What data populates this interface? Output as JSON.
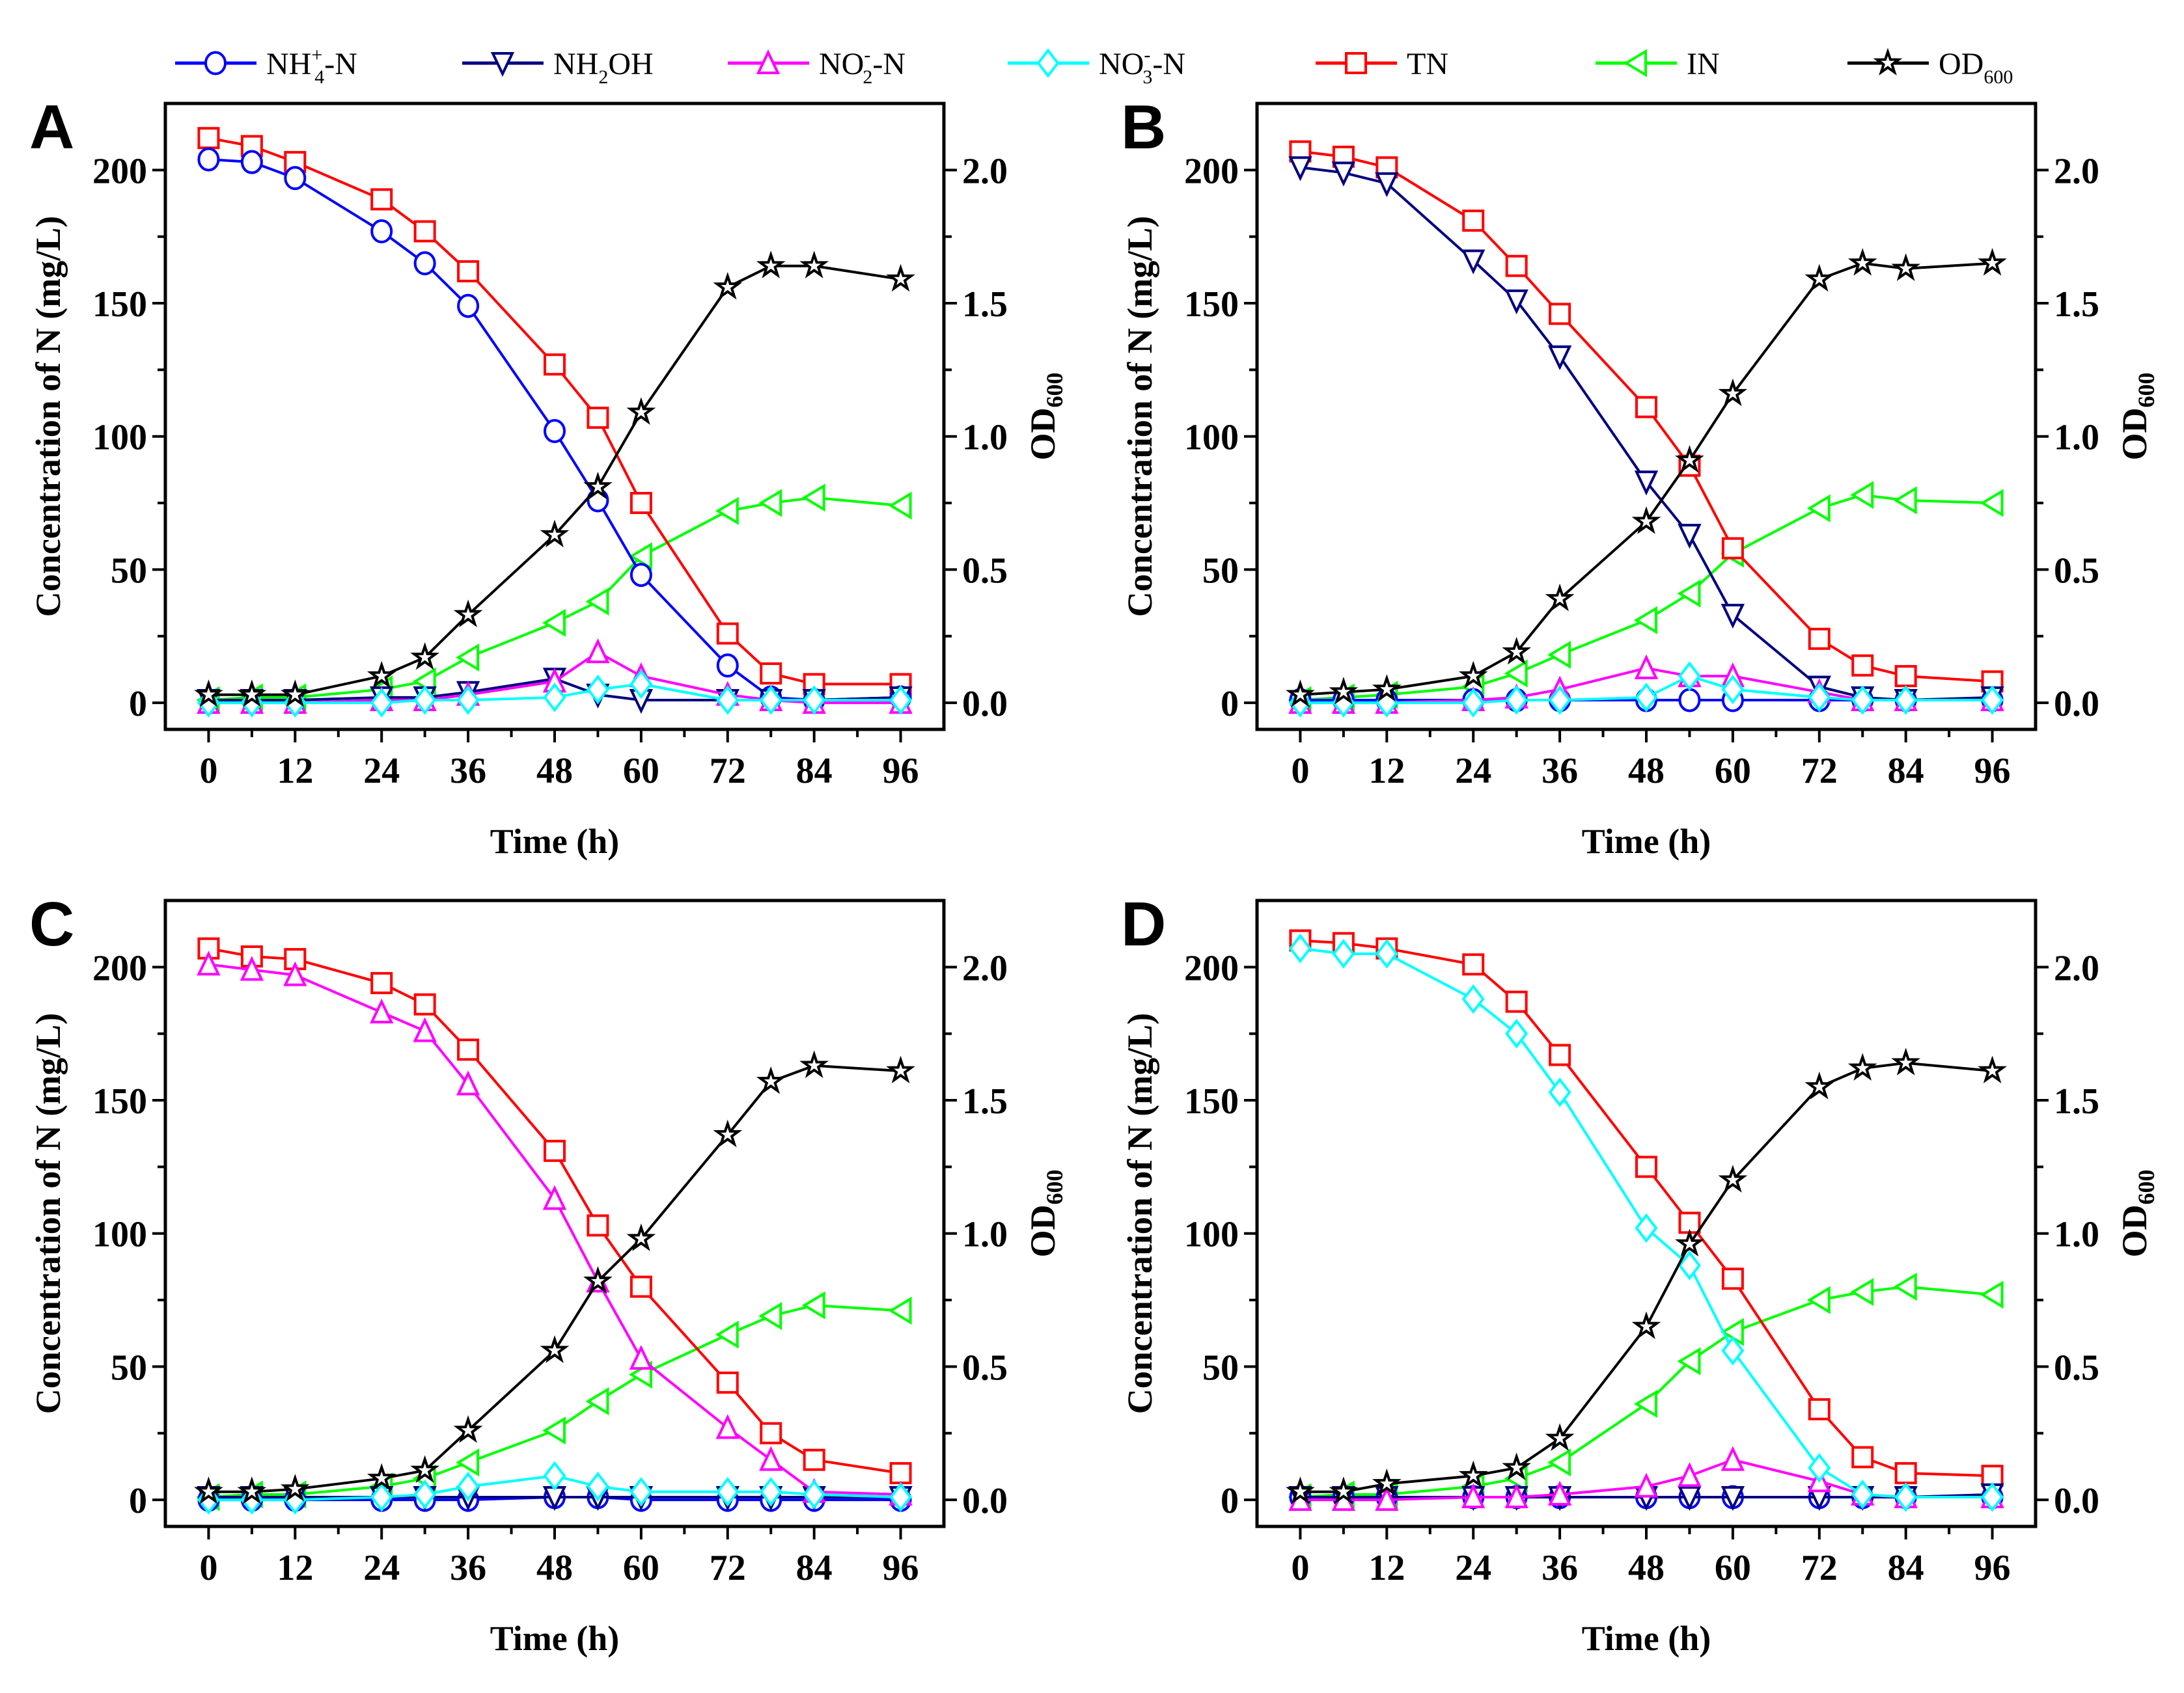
{
  "legend": [
    {
      "key": "NH4",
      "base": "NH",
      "sub": "4",
      "sup": "+",
      "rest": "-N",
      "color": "#0000ff",
      "marker": "circle"
    },
    {
      "key": "NH2OH",
      "base": "NH",
      "sub": "2",
      "sup": "",
      "rest": "OH",
      "color": "#000080",
      "marker": "triangle-down"
    },
    {
      "key": "NO2",
      "base": "NO",
      "sub": "2",
      "sup": "-",
      "rest": "-N",
      "color": "#ff00ff",
      "marker": "triangle-up"
    },
    {
      "key": "NO3",
      "base": "NO",
      "sub": "3",
      "sup": "-",
      "rest": "-N",
      "color": "#00ffff",
      "marker": "diamond"
    },
    {
      "key": "TN",
      "base": "TN",
      "sub": "",
      "sup": "",
      "rest": "",
      "color": "#ff0000",
      "marker": "square"
    },
    {
      "key": "IN",
      "base": "IN",
      "sub": "",
      "sup": "",
      "rest": "",
      "color": "#00ff00",
      "marker": "triangle-left"
    },
    {
      "key": "OD",
      "base": "OD",
      "sub": "600",
      "sup": "",
      "rest": "",
      "color": "#000000",
      "marker": "star"
    }
  ],
  "chart_data": [
    {
      "type": "line",
      "panel": "A",
      "x": [
        0,
        6,
        12,
        24,
        30,
        36,
        48,
        54,
        60,
        72,
        78,
        84,
        96
      ],
      "xlabel": "Time (h)",
      "ylabel": "Concentration of N (mg/L)",
      "y2label": "OD600",
      "xlim": [
        -6,
        102
      ],
      "ylim": [
        -10,
        225
      ],
      "y2lim": [
        -0.1,
        2.25
      ],
      "xticks": [
        0,
        12,
        24,
        36,
        48,
        60,
        72,
        84,
        96
      ],
      "yticks": [
        0,
        50,
        100,
        150,
        200
      ],
      "y2ticks": [
        "0.0",
        "0.5",
        "1.0",
        "1.5",
        "2.0"
      ],
      "series": {
        "NH4": [
          204,
          203,
          197,
          177,
          165,
          149,
          102,
          76,
          48,
          14,
          2,
          1,
          2
        ],
        "NH2OH": [
          1,
          1,
          1,
          2,
          2,
          4,
          9,
          3,
          1,
          1,
          1,
          1,
          2
        ],
        "NO2": [
          0,
          0,
          0,
          1,
          1,
          3,
          8,
          19,
          10,
          3,
          1,
          0,
          0
        ],
        "NO3": [
          0,
          0,
          0,
          0,
          1,
          1,
          2,
          5,
          7,
          1,
          1,
          1,
          1
        ],
        "TN": [
          212,
          209,
          203,
          189,
          177,
          162,
          127,
          107,
          75,
          26,
          11,
          7,
          7
        ],
        "IN": [
          1,
          2,
          2,
          5,
          8,
          17,
          30,
          38,
          55,
          72,
          75,
          77,
          74
        ],
        "OD": [
          0.03,
          0.03,
          0.03,
          0.1,
          0.17,
          0.33,
          0.63,
          0.81,
          1.09,
          1.56,
          1.64,
          1.64,
          1.59
        ]
      }
    },
    {
      "type": "line",
      "panel": "B",
      "x": [
        0,
        6,
        12,
        24,
        30,
        36,
        48,
        54,
        60,
        72,
        78,
        84,
        96
      ],
      "xlabel": "Time (h)",
      "ylabel": "Concentration of N (mg/L)",
      "y2label": "OD600",
      "xlim": [
        -6,
        102
      ],
      "ylim": [
        -10,
        225
      ],
      "y2lim": [
        -0.1,
        2.25
      ],
      "xticks": [
        0,
        12,
        24,
        36,
        48,
        60,
        72,
        84,
        96
      ],
      "yticks": [
        0,
        50,
        100,
        150,
        200
      ],
      "y2ticks": [
        "0.0",
        "0.5",
        "1.0",
        "1.5",
        "2.0"
      ],
      "series": {
        "NH4": [
          1,
          1,
          1,
          1,
          1,
          1,
          1,
          1,
          1,
          1,
          1,
          1,
          1
        ],
        "NH2OH": [
          201,
          199,
          195,
          166,
          151,
          130,
          83,
          63,
          33,
          6,
          2,
          1,
          2
        ],
        "NO2": [
          0,
          0,
          0,
          1,
          2,
          5,
          13,
          10,
          10,
          4,
          1,
          1,
          1
        ],
        "NO3": [
          0,
          0,
          0,
          0,
          1,
          1,
          2,
          10,
          5,
          2,
          1,
          1,
          1
        ],
        "TN": [
          207,
          205,
          201,
          181,
          164,
          146,
          111,
          89,
          58,
          24,
          14,
          10,
          8
        ],
        "IN": [
          1,
          2,
          3,
          6,
          11,
          18,
          31,
          41,
          56,
          73,
          78,
          76,
          75
        ],
        "OD": [
          0.03,
          0.04,
          0.05,
          0.1,
          0.19,
          0.39,
          0.68,
          0.91,
          1.16,
          1.59,
          1.65,
          1.63,
          1.65
        ]
      }
    },
    {
      "type": "line",
      "panel": "C",
      "x": [
        0,
        6,
        12,
        24,
        30,
        36,
        48,
        54,
        60,
        72,
        78,
        84,
        96
      ],
      "xlabel": "Time (h)",
      "ylabel": "Concentration of N (mg/L)",
      "y2label": "OD600",
      "xlim": [
        -6,
        102
      ],
      "ylim": [
        -10,
        225
      ],
      "y2lim": [
        -0.1,
        2.25
      ],
      "xticks": [
        0,
        12,
        24,
        36,
        48,
        60,
        72,
        84,
        96
      ],
      "yticks": [
        0,
        50,
        100,
        150,
        200
      ],
      "y2ticks": [
        "0.0",
        "0.5",
        "1.0",
        "1.5",
        "2.0"
      ],
      "series": {
        "NH4": [
          0,
          0,
          0,
          0,
          0,
          0,
          1,
          1,
          0,
          0,
          0,
          0,
          0
        ],
        "NH2OH": [
          1,
          1,
          1,
          1,
          1,
          1,
          1,
          1,
          1,
          1,
          1,
          1,
          1
        ],
        "NO2": [
          201,
          199,
          197,
          183,
          176,
          156,
          113,
          82,
          53,
          27,
          15,
          3,
          2
        ],
        "NO3": [
          0,
          0,
          0,
          1,
          2,
          5,
          9,
          5,
          3,
          3,
          3,
          2,
          1
        ],
        "TN": [
          207,
          204,
          203,
          194,
          186,
          169,
          131,
          103,
          80,
          44,
          25,
          15,
          10
        ],
        "IN": [
          1,
          2,
          2,
          5,
          8,
          14,
          26,
          37,
          47,
          62,
          69,
          73,
          71
        ],
        "OD": [
          0.03,
          0.03,
          0.04,
          0.08,
          0.11,
          0.26,
          0.56,
          0.82,
          0.98,
          1.37,
          1.57,
          1.63,
          1.61
        ]
      }
    },
    {
      "type": "line",
      "panel": "D",
      "x": [
        0,
        6,
        12,
        24,
        30,
        36,
        48,
        54,
        60,
        72,
        78,
        84,
        96
      ],
      "xlabel": "Time (h)",
      "ylabel": "Concentration of N (mg/L)",
      "y2label": "OD600",
      "xlim": [
        -6,
        102
      ],
      "ylim": [
        -10,
        225
      ],
      "y2lim": [
        -0.1,
        2.25
      ],
      "xticks": [
        0,
        12,
        24,
        36,
        48,
        60,
        72,
        84,
        96
      ],
      "yticks": [
        0,
        50,
        100,
        150,
        200
      ],
      "y2ticks": [
        "0.0",
        "0.5",
        "1.0",
        "1.5",
        "2.0"
      ],
      "series": {
        "NH4": [
          1,
          1,
          1,
          1,
          1,
          1,
          1,
          1,
          1,
          1,
          1,
          1,
          1
        ],
        "NH2OH": [
          1,
          1,
          1,
          1,
          1,
          1,
          1,
          1,
          1,
          1,
          1,
          1,
          2
        ],
        "NO2": [
          0,
          0,
          0,
          1,
          1,
          2,
          5,
          9,
          15,
          7,
          2,
          1,
          1
        ],
        "NO3": [
          207,
          205,
          205,
          188,
          175,
          153,
          102,
          88,
          56,
          12,
          2,
          1,
          1
        ],
        "TN": [
          210,
          209,
          207,
          201,
          187,
          167,
          125,
          104,
          83,
          34,
          16,
          10,
          9
        ],
        "IN": [
          1,
          2,
          2,
          5,
          8,
          14,
          36,
          52,
          63,
          75,
          78,
          80,
          77
        ],
        "OD": [
          0.03,
          0.03,
          0.06,
          0.09,
          0.12,
          0.23,
          0.65,
          0.96,
          1.2,
          1.55,
          1.62,
          1.64,
          1.61
        ]
      }
    }
  ]
}
